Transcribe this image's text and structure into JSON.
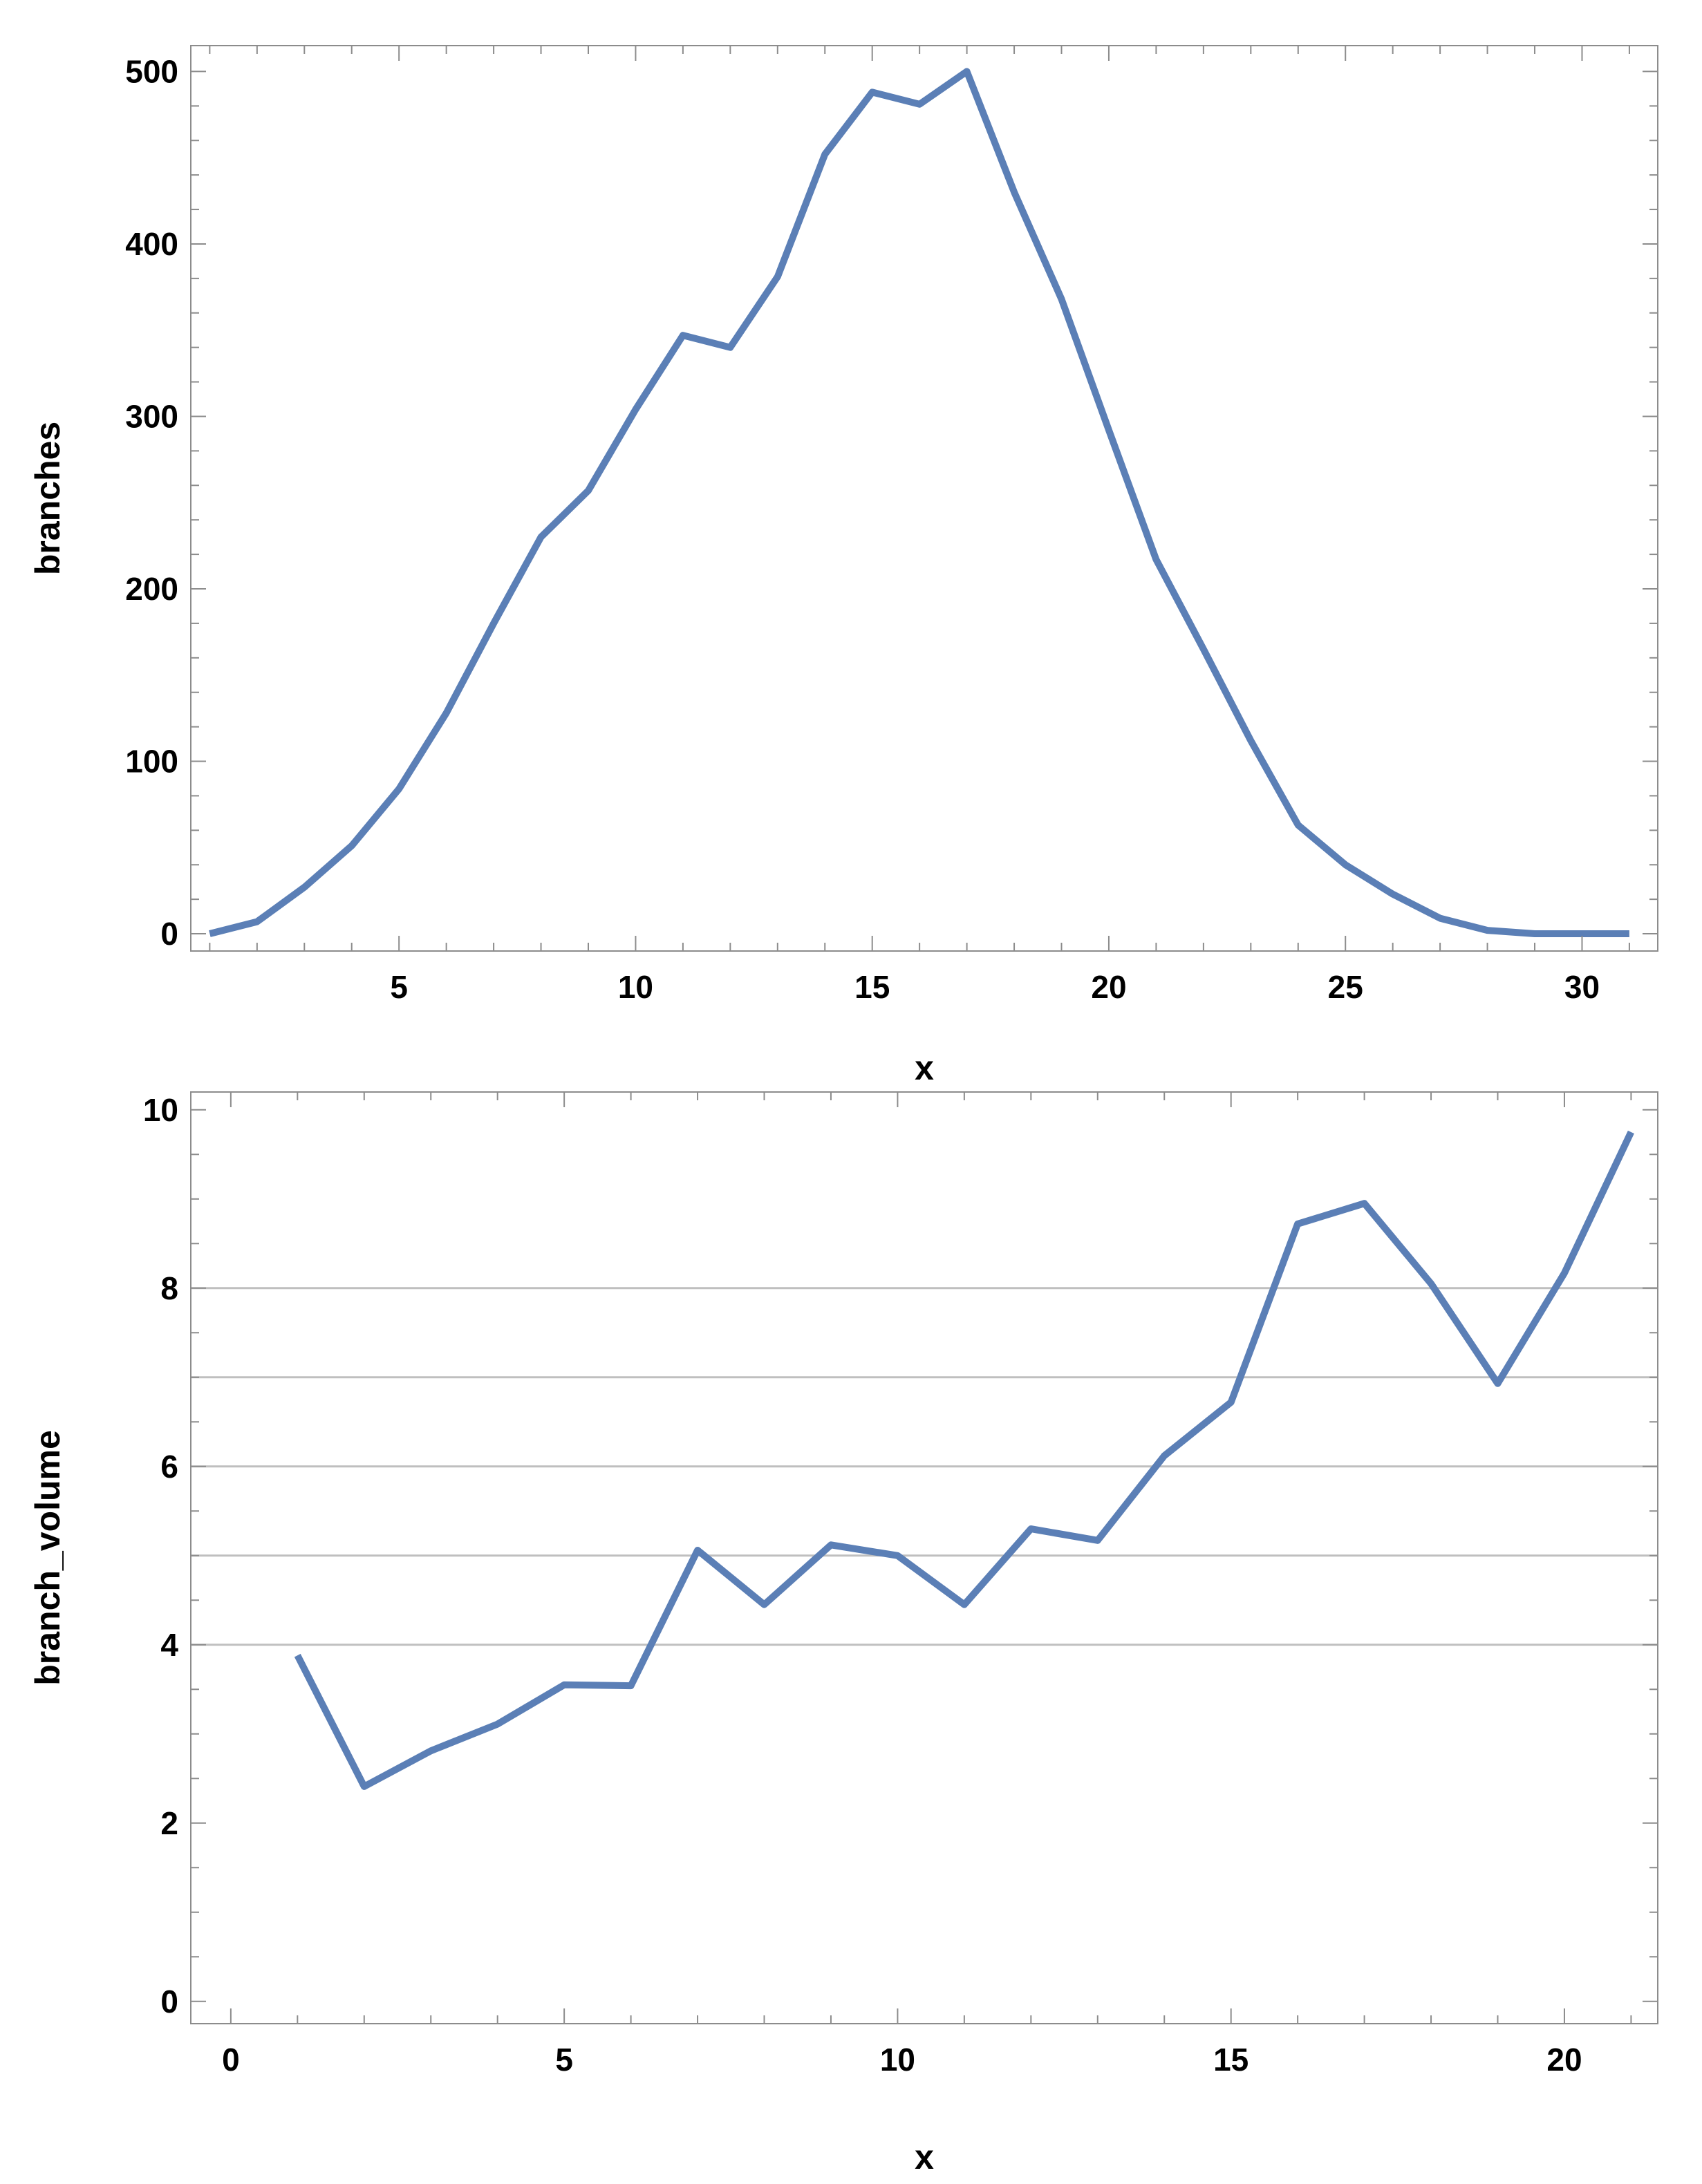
{
  "style": {
    "line_color": "#5b7fb6",
    "frame_color": "#8c8c8c",
    "grid_color": "#bfbfbf",
    "text_color": "#000000",
    "background": "#ffffff"
  },
  "chart_data": [
    {
      "type": "line",
      "title": "",
      "xlabel": "x",
      "ylabel": "branches",
      "xlim": [
        0.6,
        31.6
      ],
      "ylim": [
        -10,
        515
      ],
      "xticks": [
        5,
        10,
        15,
        20,
        25,
        30
      ],
      "yticks": [
        0,
        100,
        200,
        300,
        400,
        500
      ],
      "x_minor_step": 1,
      "y_minor_step": 20,
      "grid_y": [],
      "x": [
        1,
        2,
        3,
        4,
        5,
        6,
        7,
        8,
        9,
        10,
        11,
        12,
        13,
        14,
        15,
        16,
        17,
        18,
        19,
        20,
        21,
        22,
        23,
        24,
        25,
        26,
        27,
        28,
        29,
        30,
        31
      ],
      "series": [
        {
          "values": [
            0,
            7,
            27,
            51,
            84,
            128,
            180,
            230,
            257,
            304,
            347,
            340,
            381,
            452,
            488,
            481,
            500,
            430,
            368,
            292,
            217,
            165,
            112,
            63,
            40,
            23,
            9,
            2,
            0,
            0,
            0
          ]
        }
      ]
    },
    {
      "type": "line",
      "title": "",
      "xlabel": "x",
      "ylabel": "branch_volume",
      "xlim": [
        -0.6,
        21.4
      ],
      "ylim": [
        -0.25,
        10.2
      ],
      "xticks": [
        0,
        5,
        10,
        15,
        20
      ],
      "yticks": [
        0,
        2,
        4,
        6,
        8,
        10
      ],
      "x_minor_step": 1,
      "y_minor_step": 0.5,
      "grid_y": [
        4,
        5,
        6,
        7,
        8
      ],
      "x": [
        1,
        2,
        3,
        4,
        5,
        6,
        7,
        8,
        9,
        10,
        11,
        12,
        13,
        14,
        15,
        16,
        17,
        18,
        19,
        20,
        21
      ],
      "series": [
        {
          "values": [
            3.88,
            2.41,
            2.81,
            3.11,
            3.55,
            3.54,
            5.06,
            4.45,
            5.12,
            5.0,
            4.45,
            5.3,
            5.17,
            6.12,
            6.72,
            8.72,
            8.95,
            8.05,
            6.93,
            8.17,
            9.75
          ]
        }
      ]
    }
  ]
}
